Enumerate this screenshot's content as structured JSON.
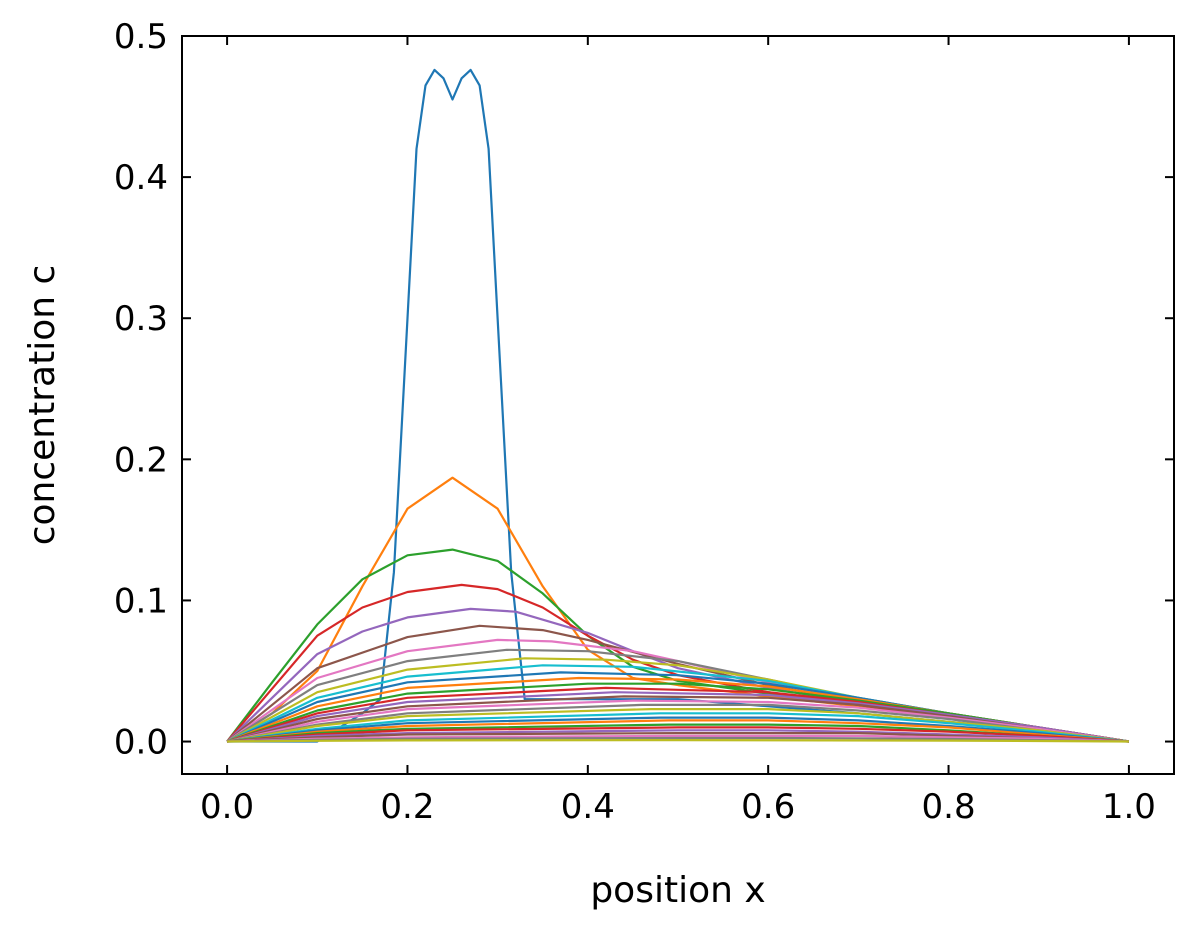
{
  "chart_data": {
    "type": "line",
    "title": "",
    "xlabel": "position x",
    "ylabel": "concentration c",
    "xlim": [
      -0.05,
      1.05
    ],
    "ylim": [
      -0.023,
      0.5
    ],
    "xticks": [
      "0.0",
      "0.2",
      "0.4",
      "0.6",
      "0.8",
      "1.0"
    ],
    "yticks": [
      "0.0",
      "0.1",
      "0.2",
      "0.3",
      "0.4",
      "0.5"
    ],
    "tick_direction": "in",
    "grid": false,
    "legend": "none",
    "colors": [
      "#1f77b4",
      "#ff7f0e",
      "#2ca02c",
      "#d62728",
      "#9467bd",
      "#8c564b",
      "#e377c2",
      "#7f7f7f",
      "#bcbd22",
      "#17becf"
    ],
    "series": [
      {
        "x": [
          0,
          0.1,
          0.15,
          0.17,
          0.185,
          0.2,
          0.21,
          0.22,
          0.23,
          0.24,
          0.25,
          0.26,
          0.27,
          0.28,
          0.29,
          0.3,
          0.315,
          0.33,
          0.35,
          0.4,
          0.5,
          0.7,
          0.9,
          1.0
        ],
        "y": [
          0,
          0,
          0.02,
          0.03,
          0.12,
          0.3,
          0.42,
          0.465,
          0.476,
          0.47,
          0.455,
          0.47,
          0.476,
          0.465,
          0.42,
          0.3,
          0.12,
          0.03,
          0.03,
          0.03,
          0.03,
          0.02,
          0.008,
          0
        ]
      },
      {
        "x": [
          0,
          0.05,
          0.1,
          0.15,
          0.2,
          0.25,
          0.3,
          0.35,
          0.4,
          0.45,
          0.5,
          0.6,
          0.7,
          0.8,
          0.9,
          1.0
        ],
        "y": [
          0,
          0.02,
          0.05,
          0.11,
          0.165,
          0.187,
          0.165,
          0.11,
          0.065,
          0.045,
          0.04,
          0.032,
          0.025,
          0.017,
          0.008,
          0
        ]
      },
      {
        "x": [
          0,
          0.05,
          0.1,
          0.15,
          0.2,
          0.25,
          0.3,
          0.35,
          0.4,
          0.45,
          0.5,
          0.6,
          0.7,
          0.8,
          0.9,
          1.0
        ],
        "y": [
          0,
          0.042,
          0.083,
          0.115,
          0.132,
          0.136,
          0.128,
          0.105,
          0.075,
          0.053,
          0.043,
          0.034,
          0.026,
          0.017,
          0.008,
          0
        ]
      },
      {
        "x": [
          0,
          0.1,
          0.15,
          0.2,
          0.26,
          0.3,
          0.35,
          0.4,
          0.45,
          0.5,
          0.6,
          0.7,
          0.8,
          0.9,
          1.0
        ],
        "y": [
          0,
          0.075,
          0.095,
          0.106,
          0.111,
          0.108,
          0.095,
          0.075,
          0.058,
          0.047,
          0.035,
          0.026,
          0.017,
          0.008,
          0
        ]
      },
      {
        "x": [
          0,
          0.1,
          0.15,
          0.2,
          0.27,
          0.32,
          0.4,
          0.45,
          0.5,
          0.6,
          0.7,
          0.8,
          0.9,
          1.0
        ],
        "y": [
          0,
          0.062,
          0.078,
          0.088,
          0.094,
          0.092,
          0.077,
          0.064,
          0.052,
          0.038,
          0.027,
          0.018,
          0.009,
          0
        ]
      },
      {
        "x": [
          0,
          0.1,
          0.2,
          0.28,
          0.35,
          0.4,
          0.5,
          0.6,
          0.7,
          0.8,
          0.9,
          1.0
        ],
        "y": [
          0,
          0.052,
          0.074,
          0.082,
          0.079,
          0.072,
          0.055,
          0.04,
          0.028,
          0.018,
          0.009,
          0
        ]
      },
      {
        "x": [
          0,
          0.1,
          0.2,
          0.3,
          0.36,
          0.45,
          0.5,
          0.6,
          0.7,
          0.8,
          0.9,
          1.0
        ],
        "y": [
          0,
          0.045,
          0.064,
          0.072,
          0.071,
          0.064,
          0.057,
          0.042,
          0.029,
          0.019,
          0.009,
          0
        ]
      },
      {
        "x": [
          0,
          0.1,
          0.2,
          0.31,
          0.4,
          0.5,
          0.6,
          0.7,
          0.8,
          0.9,
          1.0
        ],
        "y": [
          0,
          0.04,
          0.057,
          0.065,
          0.064,
          0.057,
          0.044,
          0.03,
          0.019,
          0.009,
          0
        ]
      },
      {
        "x": [
          0,
          0.1,
          0.2,
          0.33,
          0.42,
          0.5,
          0.6,
          0.7,
          0.8,
          0.9,
          1.0
        ],
        "y": [
          0,
          0.035,
          0.051,
          0.059,
          0.058,
          0.054,
          0.044,
          0.031,
          0.02,
          0.01,
          0
        ]
      },
      {
        "x": [
          0,
          0.1,
          0.2,
          0.35,
          0.45,
          0.6,
          0.7,
          0.8,
          0.9,
          1.0
        ],
        "y": [
          0,
          0.031,
          0.046,
          0.054,
          0.053,
          0.043,
          0.031,
          0.02,
          0.01,
          0
        ]
      },
      {
        "x": [
          0,
          0.1,
          0.2,
          0.37,
          0.5,
          0.6,
          0.7,
          0.8,
          0.9,
          1.0
        ],
        "y": [
          0,
          0.028,
          0.042,
          0.049,
          0.047,
          0.041,
          0.031,
          0.02,
          0.01,
          0
        ]
      },
      {
        "x": [
          0,
          0.1,
          0.2,
          0.39,
          0.5,
          0.6,
          0.7,
          0.8,
          0.9,
          1.0
        ],
        "y": [
          0,
          0.025,
          0.038,
          0.045,
          0.044,
          0.039,
          0.03,
          0.02,
          0.01,
          0
        ]
      },
      {
        "x": [
          0,
          0.1,
          0.2,
          0.4,
          0.5,
          0.6,
          0.7,
          0.8,
          0.9,
          1.0
        ],
        "y": [
          0,
          0.022,
          0.034,
          0.041,
          0.041,
          0.037,
          0.029,
          0.02,
          0.01,
          0
        ]
      },
      {
        "x": [
          0,
          0.1,
          0.2,
          0.42,
          0.6,
          0.7,
          0.8,
          0.9,
          1.0
        ],
        "y": [
          0,
          0.02,
          0.031,
          0.038,
          0.035,
          0.028,
          0.019,
          0.01,
          0
        ]
      },
      {
        "x": [
          0,
          0.1,
          0.2,
          0.43,
          0.6,
          0.7,
          0.8,
          0.9,
          1.0
        ],
        "y": [
          0,
          0.018,
          0.028,
          0.035,
          0.033,
          0.027,
          0.019,
          0.01,
          0
        ]
      },
      {
        "x": [
          0,
          0.1,
          0.2,
          0.44,
          0.6,
          0.7,
          0.8,
          0.9,
          1.0
        ],
        "y": [
          0,
          0.016,
          0.025,
          0.032,
          0.031,
          0.026,
          0.018,
          0.009,
          0
        ]
      },
      {
        "x": [
          0,
          0.1,
          0.2,
          0.45,
          0.6,
          0.7,
          0.8,
          0.9,
          1.0
        ],
        "y": [
          0,
          0.014,
          0.023,
          0.029,
          0.028,
          0.024,
          0.017,
          0.009,
          0
        ]
      },
      {
        "x": [
          0,
          0.1,
          0.2,
          0.46,
          0.6,
          0.7,
          0.8,
          0.9,
          1.0
        ],
        "y": [
          0,
          0.012,
          0.02,
          0.026,
          0.026,
          0.022,
          0.016,
          0.008,
          0
        ]
      },
      {
        "x": [
          0,
          0.1,
          0.2,
          0.47,
          0.6,
          0.7,
          0.8,
          0.9,
          1.0
        ],
        "y": [
          0,
          0.011,
          0.018,
          0.023,
          0.023,
          0.02,
          0.014,
          0.008,
          0
        ]
      },
      {
        "x": [
          0,
          0.1,
          0.2,
          0.48,
          0.6,
          0.7,
          0.8,
          0.9,
          1.0
        ],
        "y": [
          0,
          0.009,
          0.015,
          0.02,
          0.02,
          0.018,
          0.013,
          0.007,
          0
        ]
      },
      {
        "x": [
          0,
          0.1,
          0.2,
          0.48,
          0.6,
          0.7,
          0.8,
          0.9,
          1.0
        ],
        "y": [
          0,
          0.008,
          0.013,
          0.017,
          0.017,
          0.015,
          0.011,
          0.006,
          0
        ]
      },
      {
        "x": [
          0,
          0.1,
          0.2,
          0.49,
          0.6,
          0.7,
          0.8,
          0.9,
          1.0
        ],
        "y": [
          0,
          0.007,
          0.011,
          0.015,
          0.015,
          0.013,
          0.01,
          0.005,
          0
        ]
      },
      {
        "x": [
          0,
          0.1,
          0.2,
          0.49,
          0.6,
          0.7,
          0.8,
          0.9,
          1.0
        ],
        "y": [
          0,
          0.006,
          0.009,
          0.012,
          0.012,
          0.011,
          0.008,
          0.004,
          0
        ]
      },
      {
        "x": [
          0,
          0.1,
          0.2,
          0.5,
          0.6,
          0.7,
          0.8,
          0.9,
          1.0
        ],
        "y": [
          0,
          0.005,
          0.008,
          0.01,
          0.01,
          0.009,
          0.007,
          0.004,
          0
        ]
      },
      {
        "x": [
          0,
          0.1,
          0.2,
          0.5,
          0.6,
          0.7,
          0.8,
          0.9,
          1.0
        ],
        "y": [
          0,
          0.004,
          0.006,
          0.008,
          0.008,
          0.007,
          0.005,
          0.003,
          0
        ]
      },
      {
        "x": [
          0,
          0.1,
          0.2,
          0.5,
          0.6,
          0.7,
          0.8,
          0.9,
          1.0
        ],
        "y": [
          0,
          0.003,
          0.005,
          0.006,
          0.006,
          0.006,
          0.004,
          0.002,
          0
        ]
      },
      {
        "x": [
          0,
          0.1,
          0.2,
          0.5,
          0.6,
          0.7,
          0.8,
          0.9,
          1.0
        ],
        "y": [
          0,
          0.002,
          0.003,
          0.004,
          0.004,
          0.004,
          0.003,
          0.002,
          0
        ]
      },
      {
        "x": [
          0,
          0.1,
          0.2,
          0.5,
          0.6,
          0.7,
          0.8,
          0.9,
          1.0
        ],
        "y": [
          0,
          0.0012,
          0.002,
          0.0025,
          0.0025,
          0.0023,
          0.0018,
          0.001,
          0
        ]
      },
      {
        "x": [
          0,
          0.1,
          0.2,
          0.5,
          0.8,
          0.9,
          1.0
        ],
        "y": [
          0,
          0.0005,
          0.0008,
          0.001,
          0.0007,
          0.0004,
          0
        ]
      }
    ]
  }
}
